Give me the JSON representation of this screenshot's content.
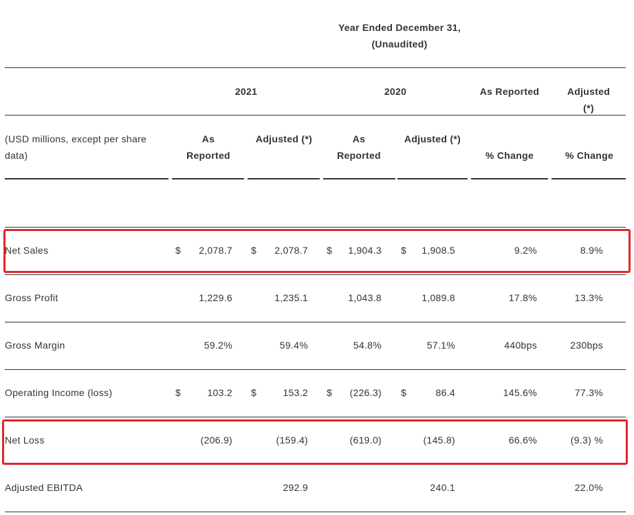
{
  "header": {
    "period": "Year Ended December 31,",
    "note": "(Unaudited)"
  },
  "columns": {
    "year_a": "2021",
    "year_b": "2020",
    "reported": "As Reported",
    "adjusted": "Adjusted (*)"
  },
  "subheaders": {
    "label": "(USD millions, except per share data)",
    "cols": [
      "As Reported",
      "Adjusted (*)",
      "As Reported",
      "Adjusted (*)",
      "% Change",
      "% Change"
    ]
  },
  "table": {
    "rows": [
      {
        "label": "Net Sales",
        "cells": [
          {
            "sign": "$",
            "value": "2,078.7"
          },
          {
            "sign": "$",
            "value": "2,078.7"
          },
          {
            "sign": "$",
            "value": "1,904.3"
          },
          {
            "sign": "$",
            "value": "1,908.5"
          },
          {
            "value": "9.2%"
          },
          {
            "value": "8.9%"
          }
        ]
      },
      {
        "label": "Gross Profit",
        "cells": [
          {
            "value": "1,229.6"
          },
          {
            "value": "1,235.1"
          },
          {
            "value": "1,043.8"
          },
          {
            "value": "1,089.8"
          },
          {
            "value": "17.8%"
          },
          {
            "value": "13.3%"
          }
        ]
      },
      {
        "label": "Gross Margin",
        "cells": [
          {
            "value": "59.2%"
          },
          {
            "value": "59.4%"
          },
          {
            "value": "54.8%"
          },
          {
            "value": "57.1%"
          },
          {
            "value": "440bps"
          },
          {
            "value": "230bps"
          }
        ]
      },
      {
        "label": "Operating Income (loss)",
        "cells": [
          {
            "sign": "$",
            "value": "103.2"
          },
          {
            "sign": "$",
            "value": "153.2"
          },
          {
            "sign": "$",
            "value": "(226.3)"
          },
          {
            "sign": "$",
            "value": "86.4"
          },
          {
            "value": "145.6%"
          },
          {
            "value": "77.3%"
          }
        ]
      },
      {
        "label": "Net Loss",
        "cells": [
          {
            "value": "(206.9)"
          },
          {
            "value": "(159.4)"
          },
          {
            "value": "(619.0)"
          },
          {
            "value": "(145.8)"
          },
          {
            "value": "66.6%"
          },
          {
            "value": "(9.3) %"
          }
        ]
      },
      {
        "label": "Adjusted EBITDA",
        "cells": [
          null,
          {
            "value": "292.9"
          },
          null,
          {
            "value": "240.1"
          },
          null,
          {
            "value": "22.0%"
          }
        ]
      }
    ]
  }
}
